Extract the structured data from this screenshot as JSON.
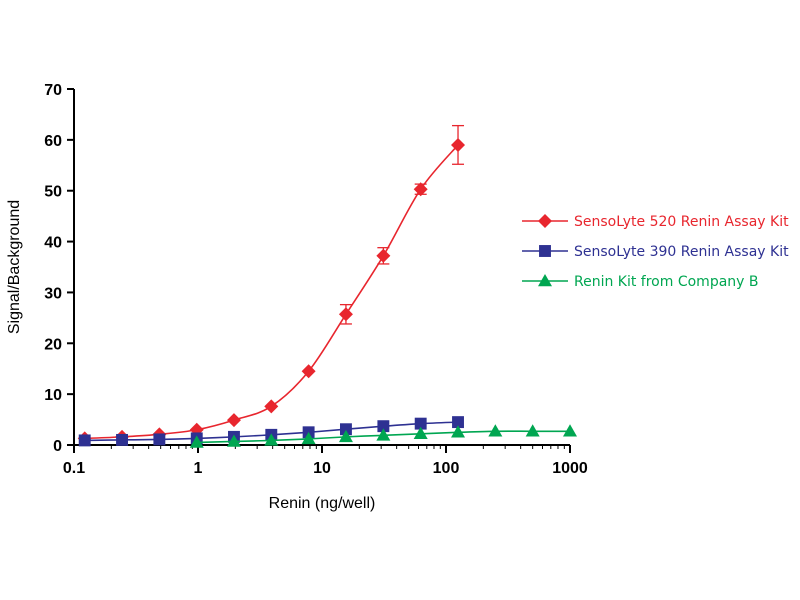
{
  "chart_data": {
    "type": "line",
    "xlabel": "Renin (ng/well)",
    "ylabel": "Signal/Background",
    "xscale": "log",
    "xlim": [
      0.1,
      1000
    ],
    "ylim": [
      0,
      70
    ],
    "x_ticks": [
      0.1,
      1,
      10,
      100,
      1000
    ],
    "x_tick_labels": [
      "0.1",
      "1",
      "10",
      "100",
      "1000"
    ],
    "y_ticks": [
      0,
      10,
      20,
      30,
      40,
      50,
      60,
      70
    ],
    "y_tick_labels": [
      "0",
      "10",
      "20",
      "30",
      "40",
      "50",
      "60",
      "70"
    ],
    "grid": false,
    "legend_position": "right",
    "series": [
      {
        "name": "SensoLyte 520 Renin Assay Kit",
        "color": "#e8262e",
        "marker": "diamond",
        "x": [
          0.122,
          0.244,
          0.488,
          0.977,
          1.95,
          3.9,
          7.8,
          15.6,
          31.25,
          62.5,
          125
        ],
        "y": [
          1.3,
          1.6,
          2.1,
          3.0,
          4.9,
          7.6,
          14.5,
          25.7,
          37.2,
          50.3,
          59.0
        ],
        "err": [
          0,
          0,
          0,
          0,
          0,
          0,
          0,
          1.9,
          1.6,
          1.0,
          3.8
        ]
      },
      {
        "name": "SensoLyte 390 Renin Assay Kit",
        "color": "#2e3192",
        "marker": "square",
        "x": [
          0.122,
          0.244,
          0.488,
          0.977,
          1.95,
          3.9,
          7.8,
          15.6,
          31.25,
          62.5,
          125
        ],
        "y": [
          0.9,
          1.0,
          1.1,
          1.3,
          1.6,
          2.0,
          2.5,
          3.1,
          3.7,
          4.2,
          4.5
        ],
        "err": [
          0,
          0,
          0,
          0,
          0,
          0,
          0,
          0,
          0,
          0,
          0
        ]
      },
      {
        "name": "Renin Kit from Company B",
        "color": "#00a651",
        "marker": "triangle",
        "x": [
          0.977,
          1.95,
          3.9,
          7.8,
          15.6,
          31.25,
          62.5,
          125,
          250,
          500,
          1000
        ],
        "y": [
          0.5,
          0.7,
          0.9,
          1.2,
          1.6,
          1.9,
          2.2,
          2.5,
          2.7,
          2.7,
          2.7
        ],
        "err": [
          0,
          0,
          0,
          0,
          0,
          0,
          0,
          0,
          0,
          0,
          0
        ]
      }
    ]
  }
}
